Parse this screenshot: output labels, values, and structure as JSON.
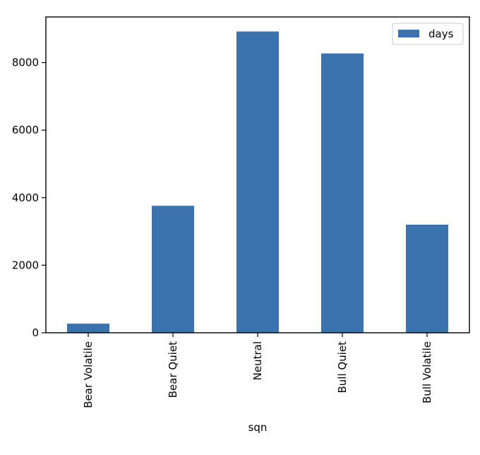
{
  "chart_data": {
    "type": "bar",
    "categories": [
      "Bear Volatile",
      "Bear Quiet",
      "Neutral",
      "Bull Quiet",
      "Bull Volatile"
    ],
    "series": [
      {
        "name": "days",
        "values": [
          270,
          3760,
          8920,
          8270,
          3200
        ],
        "color": "#3a73ad"
      }
    ],
    "xlabel": "sqn",
    "ylabel": "",
    "ylim": [
      0,
      9350
    ],
    "yticks": [
      0,
      2000,
      4000,
      6000,
      8000
    ],
    "legend": {
      "position": "top-right",
      "entries": [
        "days"
      ]
    },
    "grid": false
  }
}
